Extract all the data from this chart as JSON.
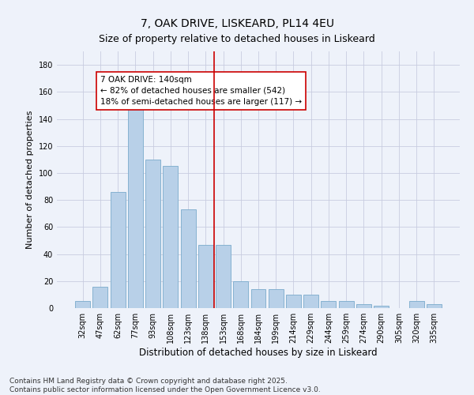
{
  "title1": "7, OAK DRIVE, LISKEARD, PL14 4EU",
  "title2": "Size of property relative to detached houses in Liskeard",
  "xlabel": "Distribution of detached houses by size in Liskeard",
  "ylabel": "Number of detached properties",
  "categories": [
    "32sqm",
    "47sqm",
    "62sqm",
    "77sqm",
    "93sqm",
    "108sqm",
    "123sqm",
    "138sqm",
    "153sqm",
    "168sqm",
    "184sqm",
    "199sqm",
    "214sqm",
    "229sqm",
    "244sqm",
    "259sqm",
    "274sqm",
    "290sqm",
    "305sqm",
    "320sqm",
    "335sqm"
  ],
  "values": [
    5,
    16,
    86,
    148,
    110,
    105,
    73,
    47,
    47,
    20,
    14,
    14,
    10,
    10,
    5,
    5,
    3,
    2,
    0,
    5,
    3
  ],
  "bar_color": "#b8d0e8",
  "bar_edge_color": "#7aabcc",
  "background_color": "#eef2fa",
  "grid_color": "#c8cce0",
  "vline_x_index": 7.5,
  "vline_color": "#cc0000",
  "annotation_text": "7 OAK DRIVE: 140sqm\n← 82% of detached houses are smaller (542)\n18% of semi-detached houses are larger (117) →",
  "annotation_box_color": "#ffffff",
  "annotation_box_edge_color": "#cc0000",
  "ylim": [
    0,
    190
  ],
  "yticks": [
    0,
    20,
    40,
    60,
    80,
    100,
    120,
    140,
    160,
    180
  ],
  "footer": "Contains HM Land Registry data © Crown copyright and database right 2025.\nContains public sector information licensed under the Open Government Licence v3.0.",
  "title1_fontsize": 10,
  "title2_fontsize": 9,
  "xlabel_fontsize": 8.5,
  "ylabel_fontsize": 8,
  "annotation_fontsize": 7.5,
  "footer_fontsize": 6.5,
  "tick_fontsize": 7
}
